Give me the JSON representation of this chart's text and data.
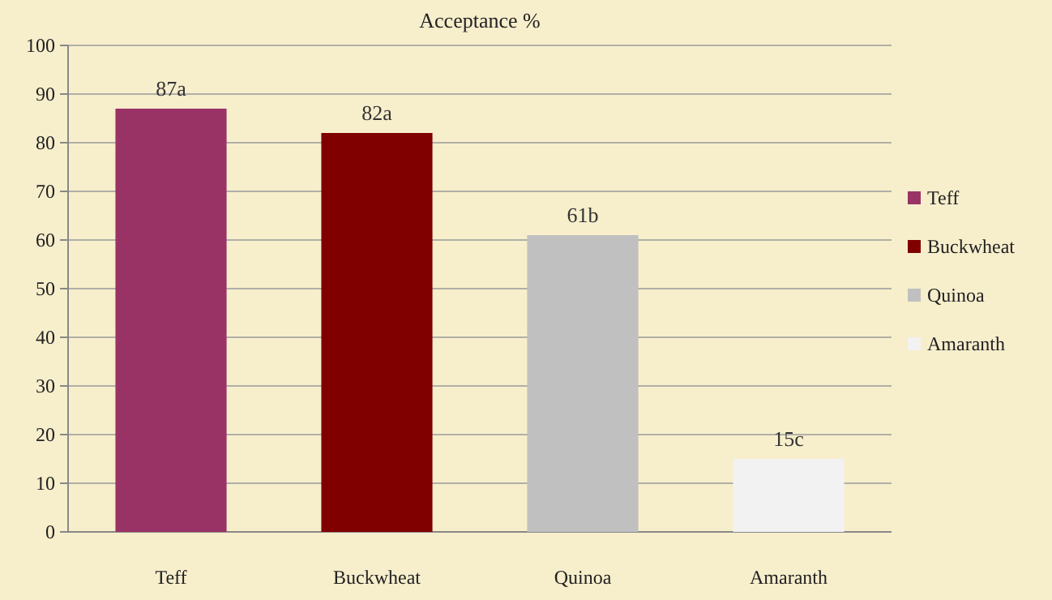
{
  "chart_data": {
    "type": "bar",
    "title": "Acceptance %",
    "categories": [
      "Teff",
      "Buckwheat",
      "Quinoa",
      "Amaranth"
    ],
    "series": [
      {
        "name": "Teff",
        "color": "#993366",
        "values": [
          87,
          null,
          null,
          null
        ],
        "value_labels": [
          "87a",
          null,
          null,
          null
        ]
      },
      {
        "name": "Buckwheat",
        "color": "#800000",
        "values": [
          null,
          82,
          null,
          null
        ],
        "value_labels": [
          null,
          "82a",
          null,
          null
        ]
      },
      {
        "name": "Quinoa",
        "color": "#c0c0c0",
        "values": [
          null,
          null,
          61,
          null
        ],
        "value_labels": [
          null,
          null,
          "61b",
          null
        ]
      },
      {
        "name": "Amaranth",
        "color": "#f2f2f2",
        "values": [
          null,
          null,
          null,
          15
        ],
        "value_labels": [
          null,
          null,
          null,
          "15c"
        ]
      }
    ],
    "ylim": [
      0,
      100
    ],
    "yticks": [
      0,
      10,
      20,
      30,
      40,
      50,
      60,
      70,
      80,
      90,
      100
    ],
    "grid": "y",
    "legend": "right"
  }
}
